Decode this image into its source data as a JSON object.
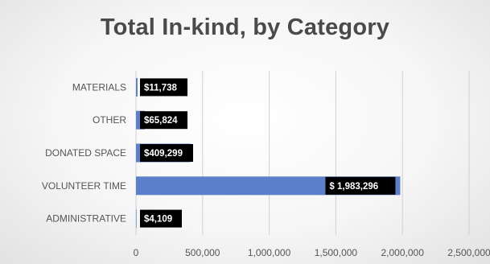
{
  "chart_data": {
    "type": "bar",
    "orientation": "horizontal",
    "title": "Total In-kind, by Category",
    "categories": [
      "MATERIALS",
      "OTHER",
      "DONATED SPACE",
      "VOLUNTEER TIME",
      "ADMINISTRATIVE"
    ],
    "values": [
      11738,
      65824,
      409299,
      1983296,
      4109
    ],
    "data_labels": [
      "$11,738",
      "$65,824",
      "$409,299",
      "$ 1,983,296",
      "$4,109"
    ],
    "x_ticks": [
      0,
      500000,
      1000000,
      1500000,
      2000000,
      2500000
    ],
    "x_tick_labels": [
      "0",
      "500,000",
      "1,000,000",
      "1,500,000",
      "2,000,000",
      "2,500,000"
    ],
    "xlim": [
      0,
      2500000
    ],
    "grid": "vertical",
    "legend": "none",
    "bar_color": "#5b7fc9",
    "label_box_color": "#000000",
    "gridline_color": "#d0d0d0"
  }
}
